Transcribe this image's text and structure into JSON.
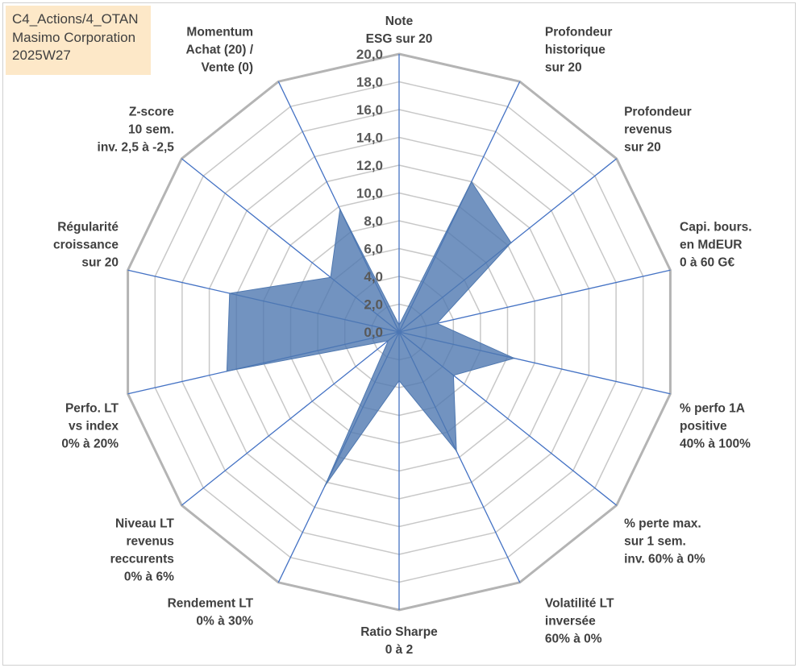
{
  "header": {
    "lines": [
      "C4_Actions/4_OTAN",
      "Masimo Corporation",
      "2025W27"
    ]
  },
  "chart_data": {
    "type": "radar",
    "title": "",
    "radial_axis": {
      "min": 0,
      "max": 20,
      "step": 2,
      "tick_labels": [
        "0,0",
        "2,0",
        "4,0",
        "6,0",
        "8,0",
        "10,0",
        "12,0",
        "14,0",
        "16,0",
        "18,0",
        "20,0"
      ]
    },
    "categories": [
      [
        "Note",
        "ESG sur 20"
      ],
      [
        "Profondeur",
        "historique",
        "sur 20"
      ],
      [
        "Profondeur",
        "revenus",
        "sur 20"
      ],
      [
        "Capi. bours.",
        "en MdEUR",
        "0 à 60 G€"
      ],
      [
        "% perfo 1A",
        "positive",
        "40% à 100%"
      ],
      [
        "% perte max.",
        "sur 1 sem.",
        "inv. 60% à 0%"
      ],
      [
        "Volatilité LT",
        "inversée",
        "60% à 0%"
      ],
      [
        "Ratio Sharpe",
        "0 à 2"
      ],
      [
        "Rendement LT",
        "0% à 30%"
      ],
      [
        "Niveau LT",
        "revenus",
        "reccurents",
        "0% à 6%"
      ],
      [
        "Perfo. LT",
        "vs index",
        "0% à 20%"
      ],
      [
        "Régularité",
        "croissance",
        "sur 20"
      ],
      [
        "Z-score",
        "10 sem.",
        "inv. 2,5 à -2,5"
      ],
      [
        "Momentum",
        "Achat (20) /",
        "Vente (0)"
      ]
    ],
    "series": [
      {
        "values": [
          0.5,
          12.0,
          10.3,
          2.8,
          8.5,
          5.0,
          9.5,
          3.5,
          12.3,
          1.0,
          12.7,
          12.5,
          6.3,
          9.8
        ]
      }
    ],
    "colors": {
      "fill": "#4f78b0",
      "fill_opacity": 0.8,
      "ring": "#c8c8c8",
      "spoke": "#4472c4",
      "outer_ring": "#b4b4b4"
    },
    "grid": true,
    "legend": "none"
  }
}
